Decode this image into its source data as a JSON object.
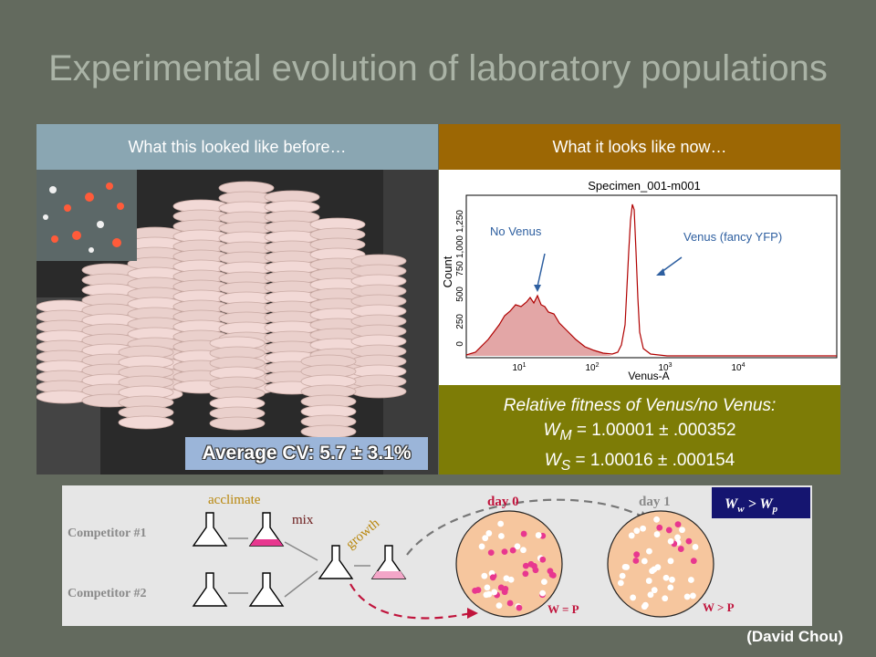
{
  "slide": {
    "title": "Experimental evolution of laboratory populations",
    "credit": "(David Chou)"
  },
  "left_panel": {
    "header": "What this looked like before…",
    "cv_label": "Average CV: 5.7 ± 3.1%"
  },
  "right_panel": {
    "header": "What it looks like now…",
    "histogram": {
      "specimen": "Specimen_001-m001",
      "ylabel": "Count",
      "xlabel": "Venus-A",
      "yticks": [
        "0",
        "250",
        "500",
        "750",
        "1,000",
        "1,250"
      ],
      "xticks": [
        "10",
        "10",
        "10",
        "10"
      ],
      "xtick_exps": [
        "1",
        "2",
        "3",
        "4"
      ],
      "annotation_no_venus": "No Venus",
      "annotation_venus": "Venus (fancy YFP)"
    },
    "fitness": {
      "line1": "Relative fitness of Venus/no Venus:",
      "wm_label": "W",
      "wm_sub": "M",
      "wm_value": " = 1.00001 ± .000352",
      "ws_label": "W",
      "ws_sub": "S",
      "ws_value": " = 1.00016 ± .000154"
    }
  },
  "diagram": {
    "competitor1": "Competitor #1",
    "competitor2": "Competitor #2",
    "acclimate": "acclimate",
    "mix": "mix",
    "growth": "growth",
    "day0": "day 0",
    "day1": "day 1",
    "w_eq_p": "W = P",
    "w_gt_p": "W > P",
    "result_w": "W",
    "result_w_sub": "w",
    "result_gt": " > ",
    "result_p": "W",
    "result_p_sub": "p",
    "colors": {
      "magenta": "#e8378f",
      "pink": "#f3a6c8",
      "dish": "#f6c69e",
      "dark_red": "#c0143c"
    }
  }
}
